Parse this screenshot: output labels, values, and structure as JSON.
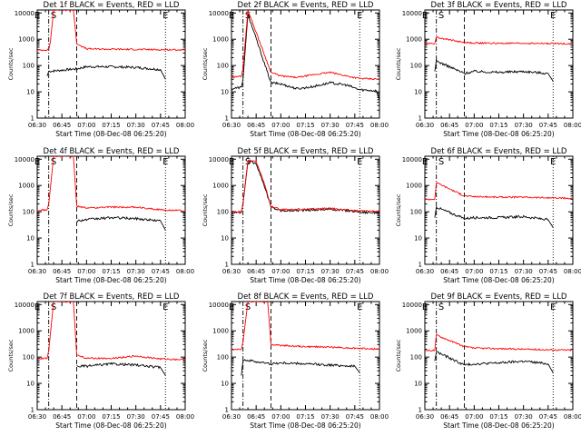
{
  "figure": {
    "colors": {
      "events": "#000000",
      "lld": "#ff0000",
      "frame": "#000000",
      "background": "#ffffff"
    }
  },
  "chart_data": [
    {
      "type": "line",
      "title": "Det 1f BLACK = Events, RED = LLD",
      "xlabel": "Start Time (08-Dec-08 06:25:20)",
      "ylabel": "Counts/sec",
      "yscale": "log",
      "ylim": [
        1,
        13000
      ],
      "xlim": [
        "06:30",
        "08:00"
      ],
      "xticks": [
        "06:30",
        "06:45",
        "07:00",
        "07:15",
        "07:30",
        "07:45",
        "08:00"
      ],
      "yticks": [
        "1",
        "10",
        "100",
        "1000",
        "10000"
      ],
      "markers": [
        {
          "label": "E",
          "time": "06:30"
        },
        {
          "label": "S",
          "time": "06:40"
        },
        {
          "label": "E",
          "time": "07:48"
        }
      ],
      "vlines": [
        {
          "time": "06:37",
          "style": "dash-dot"
        },
        {
          "time": "06:54",
          "style": "dashed"
        },
        {
          "time": "07:48",
          "style": "dotted"
        }
      ],
      "series": [
        {
          "name": "Events",
          "color": "#000000",
          "x": [
            "06:36",
            "06:37",
            "06:54",
            "07:00",
            "07:15",
            "07:30",
            "07:45",
            "07:48"
          ],
          "y": [
            40,
            60,
            75,
            90,
            90,
            85,
            70,
            30
          ]
        },
        {
          "name": "LLD",
          "color": "#ff0000",
          "x": [
            "06:30",
            "06:37",
            "06:38",
            "06:40",
            "06:52",
            "06:54",
            "07:00",
            "07:15",
            "07:30",
            "07:45",
            "08:00"
          ],
          "y": [
            380,
            400,
            800,
            13000,
            13000,
            700,
            430,
            420,
            410,
            400,
            395
          ]
        }
      ]
    },
    {
      "type": "line",
      "title": "Det 2f BLACK = Events, RED = LLD",
      "xlabel": "Start Time (08-Dec-08 06:25:20)",
      "ylabel": "Counts/sec",
      "yscale": "log",
      "ylim": [
        1,
        13000
      ],
      "xlim": [
        "06:30",
        "08:00"
      ],
      "xticks": [
        "06:30",
        "06:45",
        "07:00",
        "07:15",
        "07:30",
        "07:45",
        "08:00"
      ],
      "yticks": [
        "1",
        "10",
        "100",
        "1000",
        "10000"
      ],
      "markers": [
        {
          "label": "E",
          "time": "06:30"
        },
        {
          "label": "S",
          "time": "06:40"
        },
        {
          "label": "E",
          "time": "07:48"
        }
      ],
      "vlines": [
        {
          "time": "06:37",
          "style": "dash-dot"
        },
        {
          "time": "06:54",
          "style": "dashed"
        },
        {
          "time": "07:48",
          "style": "dotted"
        }
      ],
      "series": [
        {
          "name": "Events",
          "color": "#000000",
          "x": [
            "06:30",
            "06:36",
            "06:37",
            "06:40",
            "06:54",
            "07:00",
            "07:10",
            "07:20",
            "07:30",
            "07:40",
            "07:48",
            "07:58",
            "08:00"
          ],
          "y": [
            13,
            15,
            30,
            9000,
            22,
            20,
            13,
            16,
            22,
            18,
            12,
            11,
            5
          ]
        },
        {
          "name": "LLD",
          "color": "#ff0000",
          "x": [
            "06:30",
            "06:36",
            "06:37",
            "06:40",
            "06:54",
            "07:00",
            "07:10",
            "07:20",
            "07:30",
            "07:40",
            "07:48",
            "08:00"
          ],
          "y": [
            35,
            40,
            80,
            13000,
            55,
            40,
            35,
            45,
            55,
            40,
            32,
            30
          ]
        }
      ]
    },
    {
      "type": "line",
      "title": "Det 3f BLACK = Events, RED = LLD",
      "xlabel": "Start Time (08-Dec-08 06:25:20)",
      "ylabel": "Counts/sec",
      "yscale": "log",
      "ylim": [
        1,
        13000
      ],
      "xlim": [
        "06:30",
        "08:00"
      ],
      "xticks": [
        "06:30",
        "06:45",
        "07:00",
        "07:15",
        "07:30",
        "07:45",
        "08:00"
      ],
      "yticks": [
        "1",
        "10",
        "100",
        "1000",
        "10000"
      ],
      "markers": [
        {
          "label": "E",
          "time": "06:30"
        },
        {
          "label": "S",
          "time": "06:40"
        },
        {
          "label": "E",
          "time": "07:48"
        }
      ],
      "vlines": [
        {
          "time": "06:37",
          "style": "dash-dot"
        },
        {
          "time": "06:54",
          "style": "dashed"
        },
        {
          "time": "07:48",
          "style": "dotted"
        }
      ],
      "series": [
        {
          "name": "Events",
          "color": "#000000",
          "x": [
            "06:36",
            "06:37",
            "06:54",
            "07:00",
            "07:15",
            "07:30",
            "07:45",
            "07:48"
          ],
          "y": [
            60,
            150,
            50,
            60,
            55,
            60,
            50,
            25
          ]
        },
        {
          "name": "LLD",
          "color": "#ff0000",
          "x": [
            "06:30",
            "06:36",
            "06:37",
            "06:54",
            "07:00",
            "07:15",
            "07:30",
            "07:45",
            "08:00"
          ],
          "y": [
            700,
            700,
            1200,
            750,
            720,
            700,
            700,
            690,
            680
          ]
        }
      ]
    },
    {
      "type": "line",
      "title": "Det 4f BLACK = Events, RED = LLD",
      "xlabel": "Start Time (08-Dec-08 06:25:20)",
      "ylabel": "Counts/sec",
      "yscale": "log",
      "ylim": [
        1,
        13000
      ],
      "xlim": [
        "06:30",
        "08:00"
      ],
      "xticks": [
        "06:30",
        "06:45",
        "07:00",
        "07:15",
        "07:30",
        "07:45",
        "08:00"
      ],
      "yticks": [
        "1",
        "10",
        "100",
        "1000",
        "10000"
      ],
      "markers": [
        {
          "label": "E",
          "time": "06:30"
        },
        {
          "label": "S",
          "time": "06:40"
        },
        {
          "label": "E",
          "time": "07:48"
        }
      ],
      "vlines": [
        {
          "time": "06:37",
          "style": "dash-dot"
        },
        {
          "time": "06:54",
          "style": "dashed"
        },
        {
          "time": "07:48",
          "style": "dotted"
        }
      ],
      "series": [
        {
          "name": "Events",
          "color": "#000000",
          "x": [
            "06:54",
            "07:00",
            "07:15",
            "07:30",
            "07:45",
            "07:48"
          ],
          "y": [
            45,
            50,
            60,
            55,
            45,
            20
          ]
        },
        {
          "name": "LLD",
          "color": "#ff0000",
          "x": [
            "06:30",
            "06:36",
            "06:37",
            "06:40",
            "06:52",
            "06:54",
            "07:00",
            "07:15",
            "07:30",
            "07:45",
            "08:00"
          ],
          "y": [
            110,
            120,
            200,
            13000,
            13000,
            160,
            140,
            150,
            150,
            120,
            110
          ]
        }
      ]
    },
    {
      "type": "line",
      "title": "Det 5f BLACK = Events, RED = LLD",
      "xlabel": "Start Time (08-Dec-08 06:25:20)",
      "ylabel": "Counts/sec",
      "yscale": "log",
      "ylim": [
        1,
        13000
      ],
      "xlim": [
        "06:30",
        "08:00"
      ],
      "xticks": [
        "06:30",
        "06:45",
        "07:00",
        "07:15",
        "07:30",
        "07:45",
        "08:00"
      ],
      "yticks": [
        "1",
        "10",
        "100",
        "1000",
        "10000"
      ],
      "markers": [
        {
          "label": "E",
          "time": "06:30"
        },
        {
          "label": "S",
          "time": "06:40"
        },
        {
          "label": "E",
          "time": "07:48"
        }
      ],
      "vlines": [
        {
          "time": "06:37",
          "style": "dash-dot"
        },
        {
          "time": "06:54",
          "style": "dashed"
        },
        {
          "time": "07:48",
          "style": "dotted"
        }
      ],
      "series": [
        {
          "name": "Events",
          "color": "#000000",
          "x": [
            "06:30",
            "06:36",
            "06:37",
            "06:40",
            "06:45",
            "06:50",
            "06:54",
            "07:00",
            "07:15",
            "07:30",
            "07:45",
            "07:48",
            "08:00"
          ],
          "y": [
            95,
            95,
            200,
            8000,
            7000,
            1000,
            150,
            110,
            115,
            125,
            105,
            95,
            95
          ]
        },
        {
          "name": "LLD",
          "color": "#ff0000",
          "x": [
            "06:30",
            "06:36",
            "06:37",
            "06:40",
            "06:45",
            "06:50",
            "06:54",
            "07:00",
            "07:15",
            "07:30",
            "07:45",
            "08:00"
          ],
          "y": [
            100,
            100,
            220,
            9000,
            8000,
            1200,
            160,
            120,
            125,
            135,
            110,
            105
          ]
        }
      ]
    },
    {
      "type": "line",
      "title": "Det 6f BLACK = Events, RED = LLD",
      "xlabel": "Start Time (08-Dec-08 06:25:20)",
      "ylabel": "Counts/sec",
      "yscale": "log",
      "ylim": [
        1,
        13000
      ],
      "xlim": [
        "06:30",
        "08:00"
      ],
      "xticks": [
        "06:30",
        "06:45",
        "07:00",
        "07:15",
        "07:30",
        "07:45",
        "08:00"
      ],
      "yticks": [
        "1",
        "10",
        "100",
        "1000",
        "10000"
      ],
      "markers": [
        {
          "label": "E",
          "time": "06:30"
        },
        {
          "label": "S",
          "time": "06:40"
        },
        {
          "label": "E",
          "time": "07:48"
        }
      ],
      "vlines": [
        {
          "time": "06:37",
          "style": "dash-dot"
        },
        {
          "time": "06:54",
          "style": "dashed"
        },
        {
          "time": "07:48",
          "style": "dotted"
        }
      ],
      "series": [
        {
          "name": "Events",
          "color": "#000000",
          "x": [
            "06:36",
            "06:37",
            "06:54",
            "07:00",
            "07:15",
            "07:30",
            "07:45",
            "07:48"
          ],
          "y": [
            60,
            150,
            55,
            60,
            60,
            65,
            50,
            25
          ]
        },
        {
          "name": "LLD",
          "color": "#ff0000",
          "x": [
            "06:30",
            "06:36",
            "06:37",
            "06:54",
            "07:00",
            "07:15",
            "07:30",
            "07:45",
            "08:00"
          ],
          "y": [
            300,
            300,
            1300,
            400,
            380,
            360,
            360,
            340,
            320
          ]
        }
      ]
    },
    {
      "type": "line",
      "title": "Det 7f BLACK = Events, RED = LLD",
      "xlabel": "Start Time (08-Dec-08 06:25:20)",
      "ylabel": "Counts/sec",
      "yscale": "log",
      "ylim": [
        1,
        13000
      ],
      "xlim": [
        "06:30",
        "08:00"
      ],
      "xticks": [
        "06:30",
        "06:45",
        "07:00",
        "07:15",
        "07:30",
        "07:45",
        "08:00"
      ],
      "yticks": [
        "1",
        "10",
        "100",
        "1000",
        "10000"
      ],
      "markers": [
        {
          "label": "E",
          "time": "06:30"
        },
        {
          "label": "S",
          "time": "06:40"
        },
        {
          "label": "E",
          "time": "07:48"
        }
      ],
      "vlines": [
        {
          "time": "06:37",
          "style": "dash-dot"
        },
        {
          "time": "06:54",
          "style": "dashed"
        },
        {
          "time": "07:48",
          "style": "dotted"
        }
      ],
      "series": [
        {
          "name": "Events",
          "color": "#000000",
          "x": [
            "06:54",
            "07:00",
            "07:15",
            "07:30",
            "07:45",
            "07:48"
          ],
          "y": [
            45,
            45,
            55,
            50,
            40,
            20
          ]
        },
        {
          "name": "LLD",
          "color": "#ff0000",
          "x": [
            "06:30",
            "06:36",
            "06:37",
            "06:40",
            "06:52",
            "06:54",
            "07:00",
            "07:15",
            "07:30",
            "07:45",
            "08:00"
          ],
          "y": [
            85,
            90,
            180,
            13000,
            13000,
            120,
            90,
            90,
            110,
            85,
            80
          ]
        }
      ]
    },
    {
      "type": "line",
      "title": "Det 8f BLACK = Events, RED = LLD",
      "xlabel": "Start Time (08-Dec-08 06:25:20)",
      "ylabel": "Counts/sec",
      "yscale": "log",
      "ylim": [
        1,
        13000
      ],
      "xlim": [
        "06:30",
        "08:00"
      ],
      "xticks": [
        "06:30",
        "06:45",
        "07:00",
        "07:15",
        "07:30",
        "07:45",
        "08:00"
      ],
      "yticks": [
        "1",
        "10",
        "100",
        "1000",
        "10000"
      ],
      "markers": [
        {
          "label": "E",
          "time": "06:30"
        },
        {
          "label": "S",
          "time": "06:40"
        },
        {
          "label": "E",
          "time": "07:48"
        }
      ],
      "vlines": [
        {
          "time": "06:37",
          "style": "dash-dot"
        },
        {
          "time": "06:54",
          "style": "dashed"
        },
        {
          "time": "07:48",
          "style": "dotted"
        }
      ],
      "series": [
        {
          "name": "Events",
          "color": "#000000",
          "x": [
            "06:36",
            "06:37",
            "06:54",
            "07:00",
            "07:15",
            "07:30",
            "07:45",
            "07:48"
          ],
          "y": [
            20,
            80,
            55,
            60,
            55,
            50,
            45,
            25
          ]
        },
        {
          "name": "LLD",
          "color": "#ff0000",
          "x": [
            "06:30",
            "06:36",
            "06:37",
            "06:40",
            "06:52",
            "06:54",
            "07:00",
            "07:15",
            "07:30",
            "07:45",
            "08:00"
          ],
          "y": [
            200,
            200,
            380,
            13000,
            13000,
            300,
            280,
            250,
            240,
            220,
            200
          ]
        }
      ]
    },
    {
      "type": "line",
      "title": "Det 9f BLACK = Events, RED = LLD",
      "xlabel": "Start Time (08-Dec-08 06:25:20)",
      "ylabel": "Counts/sec",
      "yscale": "log",
      "ylim": [
        1,
        13000
      ],
      "xlim": [
        "06:30",
        "08:00"
      ],
      "xticks": [
        "06:30",
        "06:45",
        "07:00",
        "07:15",
        "07:30",
        "07:45",
        "08:00"
      ],
      "yticks": [
        "1",
        "10",
        "100",
        "1000",
        "10000"
      ],
      "markers": [
        {
          "label": "E",
          "time": "06:30"
        },
        {
          "label": "S",
          "time": "06:40"
        },
        {
          "label": "E",
          "time": "07:48"
        }
      ],
      "vlines": [
        {
          "time": "06:37",
          "style": "dash-dot"
        },
        {
          "time": "06:54",
          "style": "dashed"
        },
        {
          "time": "07:48",
          "style": "dotted"
        }
      ],
      "series": [
        {
          "name": "Events",
          "color": "#000000",
          "x": [
            "06:36",
            "06:37",
            "06:54",
            "07:00",
            "07:15",
            "07:30",
            "07:45",
            "07:48"
          ],
          "y": [
            70,
            160,
            50,
            55,
            60,
            70,
            55,
            25
          ]
        },
        {
          "name": "LLD",
          "color": "#ff0000",
          "x": [
            "06:30",
            "06:36",
            "06:37",
            "06:54",
            "07:00",
            "07:15",
            "07:30",
            "07:45",
            "08:00"
          ],
          "y": [
            180,
            180,
            700,
            250,
            220,
            210,
            200,
            190,
            185
          ]
        }
      ]
    }
  ]
}
